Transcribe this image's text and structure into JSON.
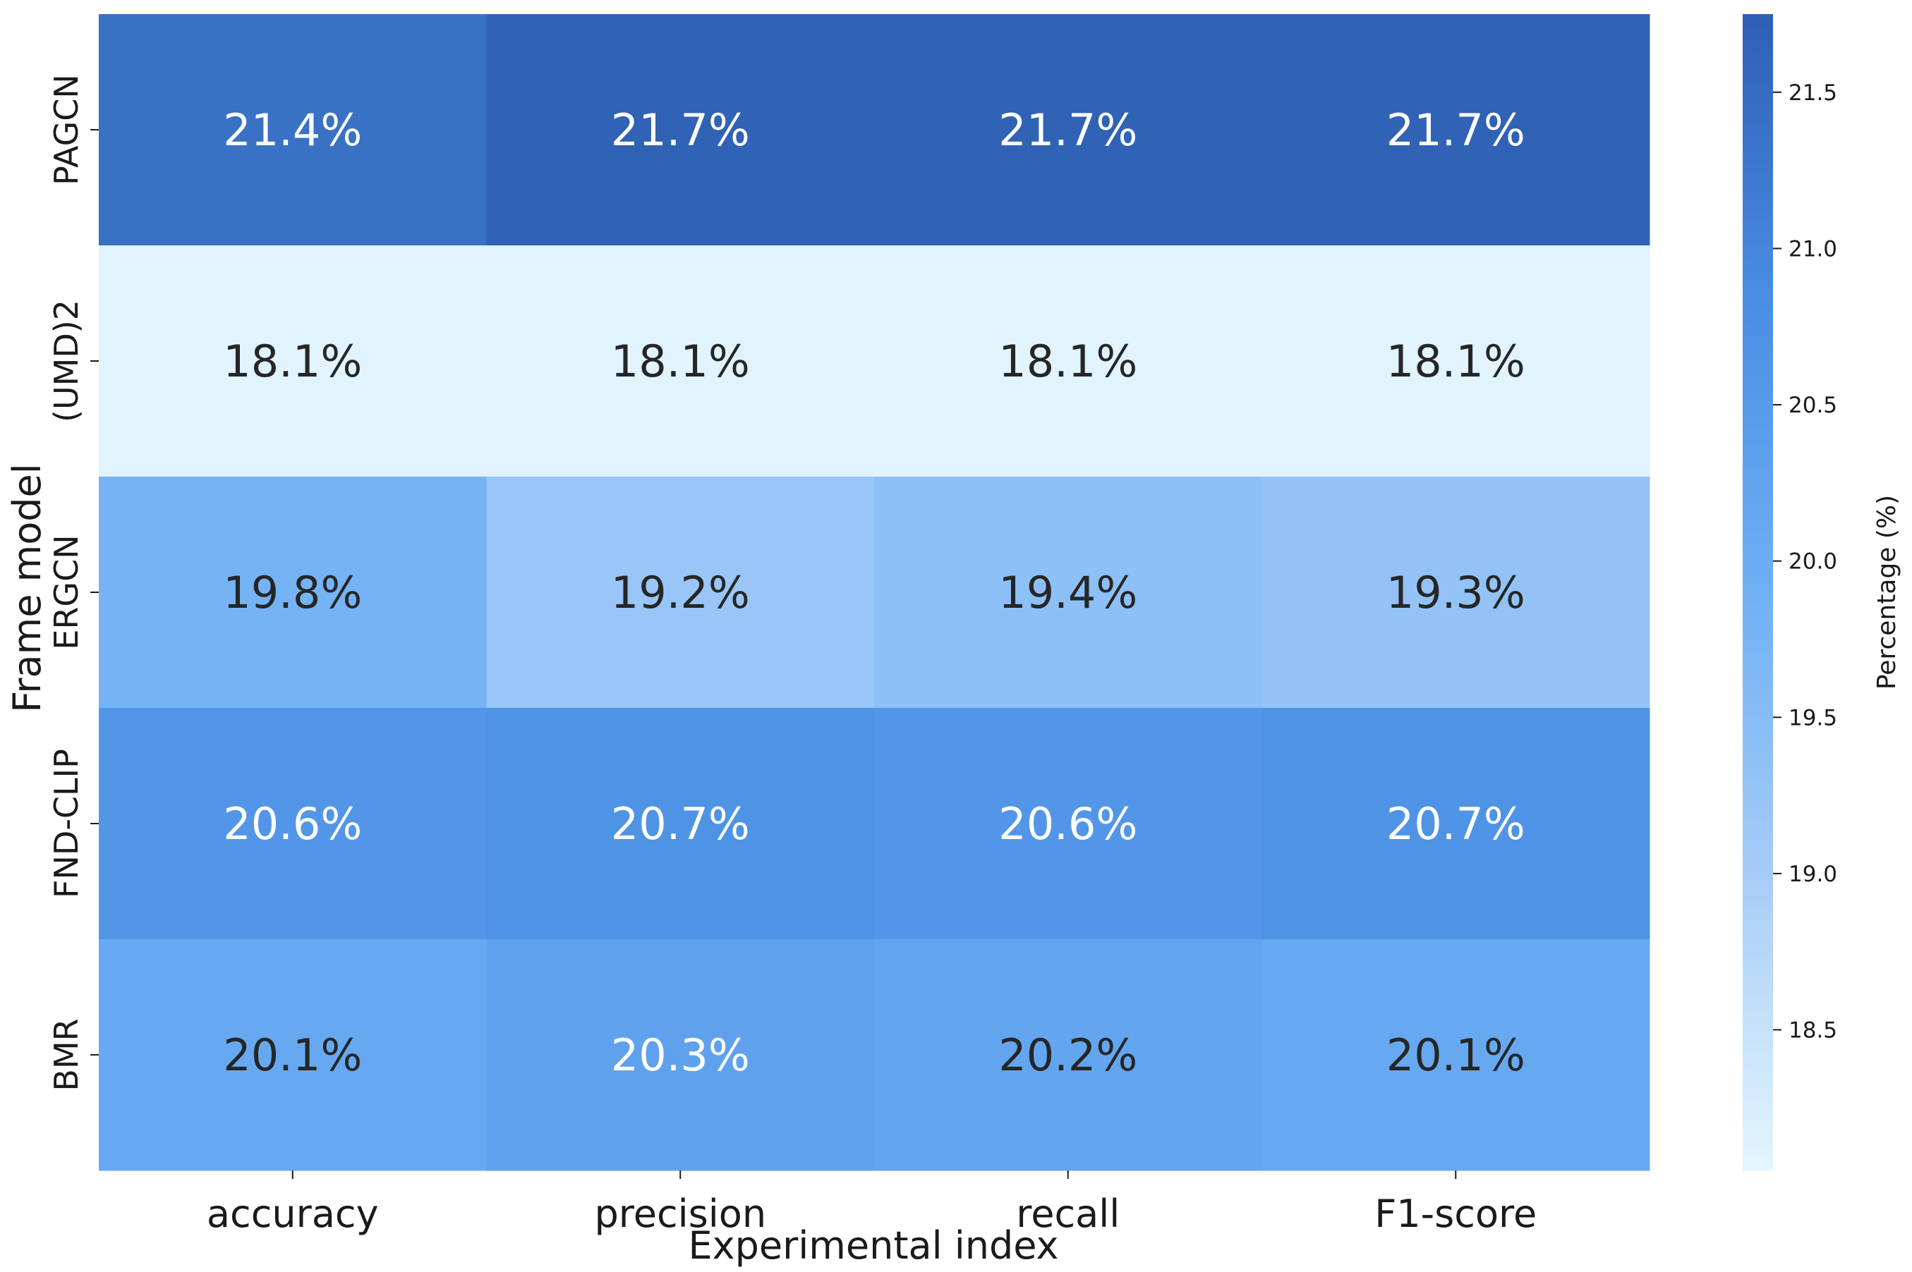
{
  "chart_data": {
    "type": "heatmap",
    "xlabel": "Experimental index",
    "ylabel": "Frame model",
    "colorbar_label": "Percentage (%)",
    "x_categories": [
      "accuracy",
      "precision",
      "recall",
      "F1-score"
    ],
    "y_categories": [
      "PAGCN",
      "(UMD)2",
      "ERGCN",
      "FND-CLIP",
      "BMR"
    ],
    "values": [
      [
        21.4,
        21.7,
        21.7,
        21.7
      ],
      [
        18.1,
        18.1,
        18.1,
        18.1
      ],
      [
        19.8,
        19.2,
        19.4,
        19.3
      ],
      [
        20.6,
        20.7,
        20.6,
        20.7
      ],
      [
        20.1,
        20.3,
        20.2,
        20.1
      ]
    ],
    "labels": [
      [
        "21.4%",
        "21.7%",
        "21.7%",
        "21.7%"
      ],
      [
        "18.1%",
        "18.1%",
        "18.1%",
        "18.1%"
      ],
      [
        "19.8%",
        "19.2%",
        "19.4%",
        "19.3%"
      ],
      [
        "20.6%",
        "20.7%",
        "20.6%",
        "20.7%"
      ],
      [
        "20.1%",
        "20.3%",
        "20.2%",
        "20.1%"
      ]
    ],
    "colorbar_range": [
      18.05,
      21.75
    ],
    "colorbar_ticks": [
      "18.5",
      "19.0",
      "19.5",
      "20.0",
      "20.5",
      "21.0",
      "21.5"
    ],
    "colormap": [
      "#e4f5fd",
      "#a7cdf7",
      "#6fb0f5",
      "#4a8ee2",
      "#2e5fb4"
    ],
    "label_colors": {
      "light": "#ffffff",
      "dark": "#262626"
    },
    "grid": false,
    "legend": "colorbar-right"
  }
}
